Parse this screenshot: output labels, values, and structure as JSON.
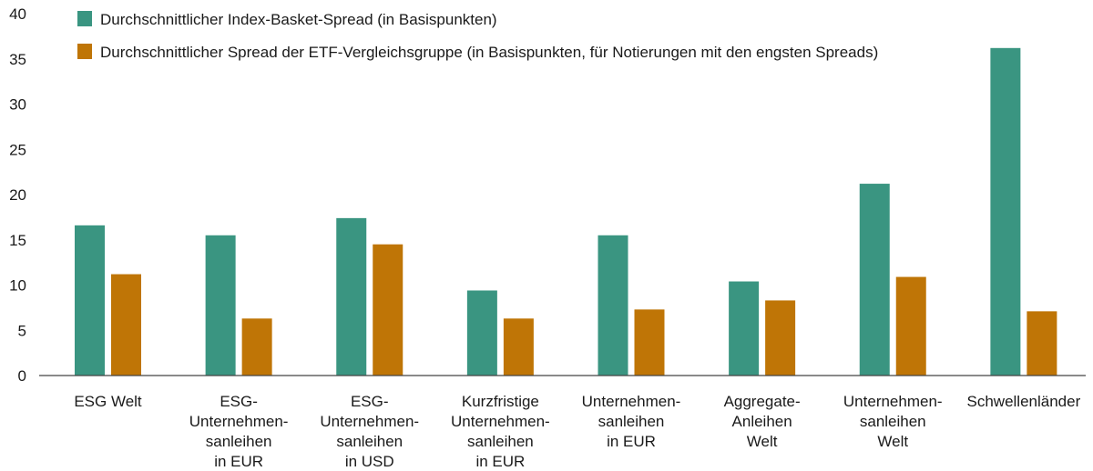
{
  "chart_data": {
    "type": "bar",
    "categories": [
      [
        "ESG Welt"
      ],
      [
        "ESG-",
        "Unternehmen-",
        "sanleihen",
        "in EUR"
      ],
      [
        "ESG-",
        "Unternehmen-",
        "sanleihen",
        "in USD"
      ],
      [
        "Kurzfristige",
        "Unternehmen-",
        "sanleihen",
        "in EUR"
      ],
      [
        "Unternehmen-",
        "sanleihen",
        "in EUR"
      ],
      [
        "Aggregate-",
        "Anleihen",
        "Welt"
      ],
      [
        "Unternehmen-",
        "sanleihen",
        "Welt"
      ],
      [
        "Schwellenländer"
      ]
    ],
    "series": [
      {
        "name": "Durchschnittlicher Index-Basket-Spread (in Basispunkten)",
        "color": "#3a9581",
        "values": [
          16.6,
          15.5,
          17.4,
          9.4,
          15.5,
          10.4,
          21.2,
          36.2
        ]
      },
      {
        "name": "Durchschnittlicher Spread der ETF-Vergleichsgruppe (in Basispunkten, für Notierungen mit den engsten Spreads)",
        "color": "#bf7506",
        "values": [
          11.2,
          6.3,
          14.5,
          6.3,
          7.3,
          8.3,
          10.9,
          7.1
        ]
      }
    ],
    "yticks": [
      0,
      5,
      10,
      15,
      20,
      25,
      30,
      35,
      40
    ],
    "ylim": [
      0,
      40
    ],
    "title": "",
    "xlabel": "",
    "ylabel": "",
    "grid": false,
    "legend": "top-left"
  }
}
